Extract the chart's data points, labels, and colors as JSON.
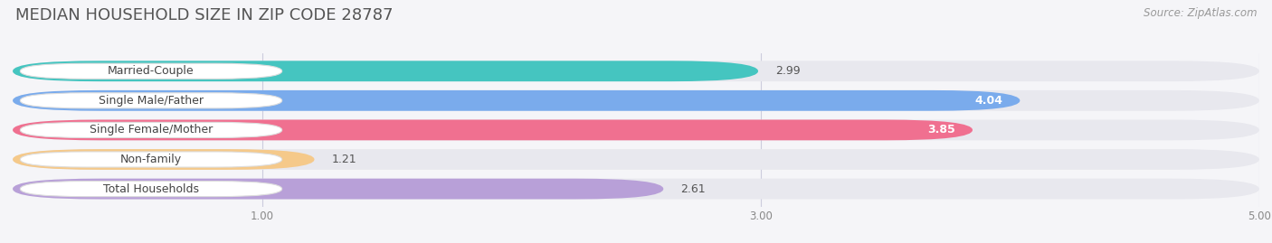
{
  "title": "MEDIAN HOUSEHOLD SIZE IN ZIP CODE 28787",
  "source": "Source: ZipAtlas.com",
  "categories": [
    "Married-Couple",
    "Single Male/Father",
    "Single Female/Mother",
    "Non-family",
    "Total Households"
  ],
  "values": [
    2.99,
    4.04,
    3.85,
    1.21,
    2.61
  ],
  "bar_colors": [
    "#45c5c0",
    "#7aabec",
    "#f07090",
    "#f5c98a",
    "#b8a0d8"
  ],
  "bar_bg_color": "#e8e8ee",
  "value_inside_color": [
    "#555555",
    "#ffffff",
    "#ffffff",
    "#555555",
    "#555555"
  ],
  "xlim": [
    0,
    5.0
  ],
  "xstart": 0.0,
  "xticks": [
    1.0,
    3.0,
    5.0
  ],
  "title_fontsize": 13,
  "source_fontsize": 8.5,
  "value_fontsize": 9,
  "category_fontsize": 9,
  "background_color": "#f5f5f8",
  "bar_height": 0.7,
  "pill_color": "#ffffff",
  "pill_border_color": "#dddddd",
  "grid_color": "#ccccdd"
}
